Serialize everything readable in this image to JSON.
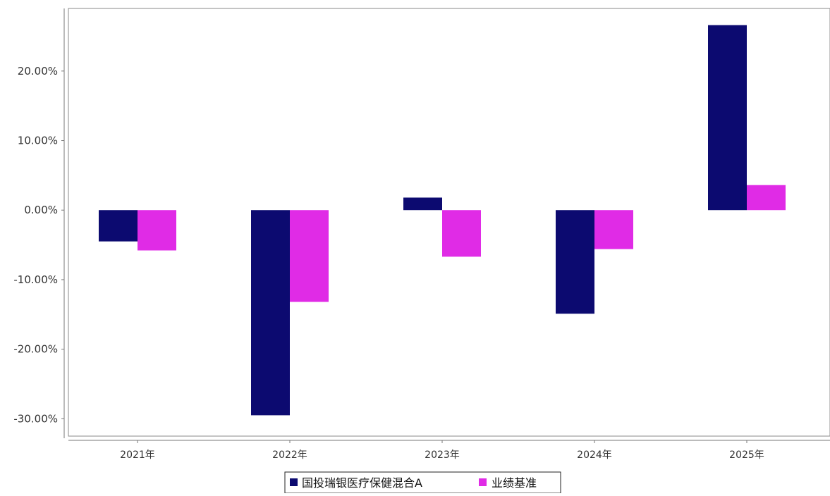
{
  "chart_data": {
    "type": "bar",
    "categories": [
      "2021年",
      "2022年",
      "2023年",
      "2024年",
      "2025年"
    ],
    "series": [
      {
        "name": "国投瑞银医疗保健混合A",
        "color": "#0c0a70",
        "values": [
          -4.5,
          -29.5,
          1.8,
          -14.9,
          26.6
        ]
      },
      {
        "name": "业绩基准",
        "color": "#e02be6",
        "values": [
          -5.8,
          -13.2,
          -6.7,
          -5.6,
          3.6
        ]
      }
    ],
    "ylim": [
      -32.5,
      29
    ],
    "yticks": [
      -30,
      -20,
      -10,
      0,
      10,
      20
    ],
    "ytick_labels": [
      "-30.00%",
      "-20.00%",
      "-10.00%",
      "0.00%",
      "10.00%",
      "20.00%"
    ],
    "legend_position": "bottom-center",
    "grid": false
  }
}
